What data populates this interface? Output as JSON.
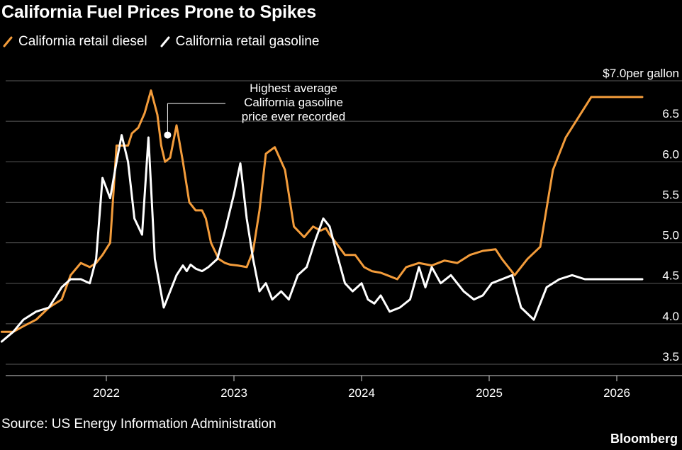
{
  "chart_data": {
    "type": "line",
    "title": "California Fuel Prices Prone to Spikes",
    "ylabel_unit": "per gallon",
    "ylim": [
      3.5,
      7.0
    ],
    "y_ticks": [
      3.5,
      4.0,
      4.5,
      5.0,
      5.5,
      6.0,
      6.5,
      7.0
    ],
    "y_tick_labels": [
      "3.5",
      "4.0",
      "4.5",
      "5.0",
      "5.5",
      "6.0",
      "6.5",
      "$7.0"
    ],
    "x_ticks": [
      2022,
      2023,
      2024,
      2025,
      2026
    ],
    "x_tick_labels": [
      "2022",
      "2023",
      "2024",
      "2025",
      "2026"
    ],
    "grid": true,
    "legend_position": "top-left",
    "series": [
      {
        "name": "California retail diesel",
        "color": "#f39c3b",
        "x": [
          2021.18,
          2021.27,
          2021.35,
          2021.45,
          2021.55,
          2021.65,
          2021.72,
          2021.8,
          2021.87,
          2021.92,
          2021.97,
          2022.03,
          2022.08,
          2022.13,
          2022.17,
          2022.2,
          2022.25,
          2022.3,
          2022.35,
          2022.4,
          2022.43,
          2022.46,
          2022.5,
          2022.55,
          2022.6,
          2022.65,
          2022.7,
          2022.75,
          2022.78,
          2022.82,
          2022.88,
          2022.93,
          2022.97,
          2023.03,
          2023.1,
          2023.15,
          2023.2,
          2023.25,
          2023.32,
          2023.4,
          2023.47,
          2023.55,
          2023.62,
          2023.68,
          2023.72,
          2023.75,
          2023.8,
          2023.87,
          2023.95,
          2024.02,
          2024.08,
          2024.15,
          2024.2,
          2024.28,
          2024.35,
          2024.45,
          2024.55,
          2024.65,
          2024.75,
          2024.85,
          2024.95,
          2025.05,
          2025.1,
          2025.2,
          2025.3,
          2025.4,
          2025.5,
          2025.6,
          2025.7,
          2025.8,
          2025.88,
          2025.95,
          2026.02,
          2026.08,
          2026.12,
          2026.15,
          2026.18,
          2026.2
        ],
        "y": [
          3.9,
          3.9,
          3.97,
          4.05,
          4.2,
          4.3,
          4.6,
          4.75,
          4.7,
          4.75,
          4.85,
          5.0,
          6.2,
          6.2,
          6.2,
          6.35,
          6.42,
          6.6,
          6.88,
          6.58,
          6.2,
          6.0,
          6.05,
          6.45,
          6.0,
          5.5,
          5.4,
          5.4,
          5.3,
          5.0,
          4.8,
          4.75,
          4.73,
          4.72,
          4.7,
          4.9,
          5.4,
          6.1,
          6.18,
          5.9,
          5.2,
          5.07,
          5.2,
          5.15,
          5.18,
          5.1,
          5.0,
          4.85,
          4.85,
          4.7,
          4.65,
          4.63,
          4.6,
          4.55,
          4.7,
          4.75,
          4.72,
          4.78,
          4.75,
          4.85,
          4.9,
          4.92,
          4.8,
          4.6,
          4.8,
          4.95,
          5.9,
          6.3,
          6.55,
          6.8,
          6.8,
          6.8,
          6.8,
          6.8,
          6.8,
          6.8,
          6.8,
          6.8
        ]
      },
      {
        "name": "California retail gasoline",
        "color": "#ffffff",
        "x": [
          2021.18,
          2021.27,
          2021.35,
          2021.45,
          2021.55,
          2021.65,
          2021.72,
          2021.8,
          2021.87,
          2021.92,
          2021.97,
          2022.03,
          2022.08,
          2022.12,
          2022.17,
          2022.22,
          2022.28,
          2022.33,
          2022.38,
          2022.45,
          2022.5,
          2022.55,
          2022.6,
          2022.63,
          2022.66,
          2022.7,
          2022.75,
          2022.8,
          2022.87,
          2022.93,
          2023.0,
          2023.05,
          2023.1,
          2023.15,
          2023.2,
          2023.25,
          2023.3,
          2023.37,
          2023.43,
          2023.5,
          2023.57,
          2023.63,
          2023.7,
          2023.75,
          2023.8,
          2023.87,
          2023.93,
          2024.0,
          2024.05,
          2024.1,
          2024.15,
          2024.22,
          2024.3,
          2024.38,
          2024.45,
          2024.5,
          2024.55,
          2024.62,
          2024.7,
          2024.8,
          2024.88,
          2024.95,
          2025.02,
          2025.1,
          2025.18,
          2025.25,
          2025.35,
          2025.45,
          2025.55,
          2025.65,
          2025.75,
          2025.85,
          2025.92,
          2025.97,
          2026.05,
          2026.1,
          2026.15,
          2026.2
        ],
        "y": [
          3.78,
          3.9,
          4.05,
          4.15,
          4.2,
          4.45,
          4.55,
          4.55,
          4.5,
          4.8,
          5.8,
          5.55,
          6.0,
          6.33,
          6.0,
          5.3,
          5.1,
          6.3,
          4.8,
          4.2,
          4.4,
          4.6,
          4.72,
          4.65,
          4.73,
          4.68,
          4.65,
          4.7,
          4.8,
          5.15,
          5.6,
          5.98,
          5.3,
          4.8,
          4.4,
          4.5,
          4.3,
          4.4,
          4.3,
          4.6,
          4.7,
          5.0,
          5.3,
          5.2,
          4.9,
          4.5,
          4.4,
          4.5,
          4.3,
          4.25,
          4.35,
          4.15,
          4.2,
          4.3,
          4.7,
          4.45,
          4.7,
          4.5,
          4.6,
          4.4,
          4.3,
          4.35,
          4.5,
          4.55,
          4.6,
          4.2,
          4.05,
          4.45,
          4.55,
          4.6,
          4.55,
          4.55,
          4.55,
          4.55,
          4.55,
          4.55,
          4.55,
          4.55
        ]
      }
    ],
    "annotation": {
      "lines": [
        "Highest average",
        "California gasoline",
        "price ever recorded"
      ],
      "x": 2022.48,
      "y": 6.33
    }
  },
  "source": "Source: US Energy Information Administration",
  "brand": "Bloomberg",
  "legend": {
    "diesel_label": "California retail diesel",
    "gasoline_label": "California retail gasoline"
  }
}
